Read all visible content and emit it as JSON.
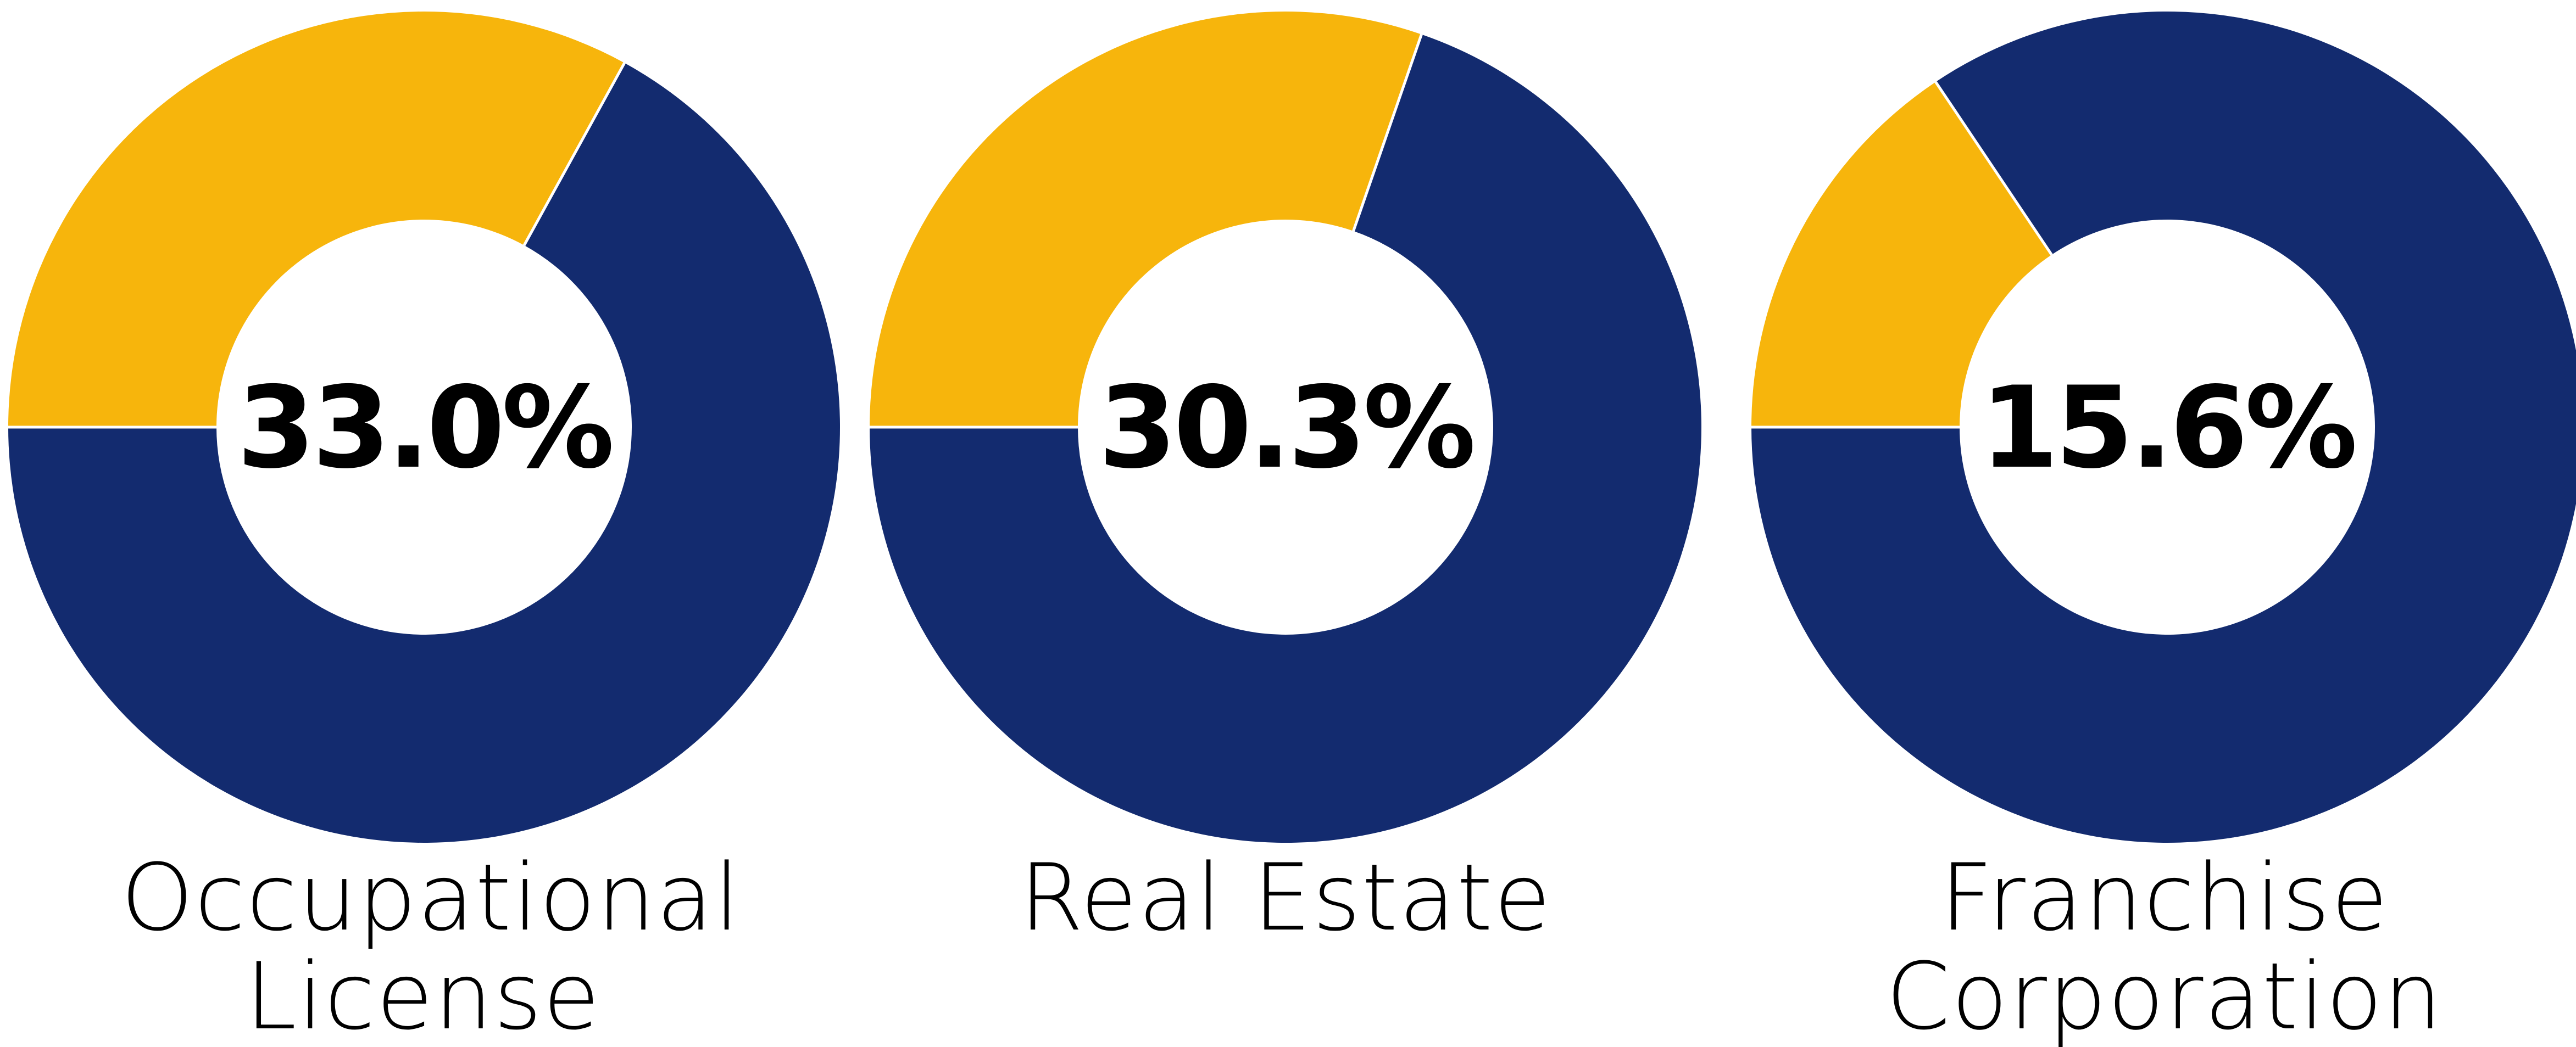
{
  "colors": {
    "share": "#F7B50C",
    "remainder": "#132B6F",
    "background": "#FFFFFF",
    "text": "#000000"
  },
  "chart_data": [
    {
      "type": "pie",
      "style": "donut",
      "label_lines": [
        "Occupational",
        "License"
      ],
      "value_label": "33.0%",
      "slices": [
        {
          "value": 33.0,
          "color": "#F7B50C"
        },
        {
          "value": 67.0,
          "color": "#132B6F"
        }
      ]
    },
    {
      "type": "pie",
      "style": "donut",
      "label_lines": [
        "Real Estate"
      ],
      "value_label": "30.3%",
      "slices": [
        {
          "value": 30.3,
          "color": "#F7B50C"
        },
        {
          "value": 69.7,
          "color": "#132B6F"
        }
      ]
    },
    {
      "type": "pie",
      "style": "donut",
      "label_lines": [
        "Franchise",
        "Corporation"
      ],
      "value_label": "15.6%",
      "slices": [
        {
          "value": 15.6,
          "color": "#F7B50C"
        },
        {
          "value": 84.4,
          "color": "#132B6F"
        }
      ]
    }
  ]
}
